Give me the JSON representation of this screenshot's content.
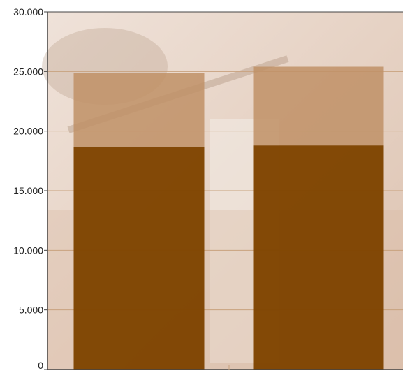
{
  "chart_data": {
    "type": "bar",
    "stacked": true,
    "categories": [
      "",
      ""
    ],
    "series": [
      {
        "values": [
          18700,
          18800
        ]
      },
      {
        "values": [
          6200,
          6600
        ]
      }
    ],
    "ylim": [
      0,
      30000
    ],
    "yticks": [
      "0",
      "5.000",
      "10.000",
      "15.000",
      "20.000",
      "25.000",
      "30.000"
    ],
    "grid": true,
    "legend": "none"
  },
  "colors": {
    "series_0": "#7f4400",
    "series_1": "#c09066",
    "grid": "#c8a27e",
    "axis": "#444444",
    "plot_bg": "#ead8cc",
    "photo_tone_dark": "#b9a08c",
    "photo_tone_warm": "#d9b9a4"
  },
  "background_image": "photo of construction worker carrying pipe"
}
